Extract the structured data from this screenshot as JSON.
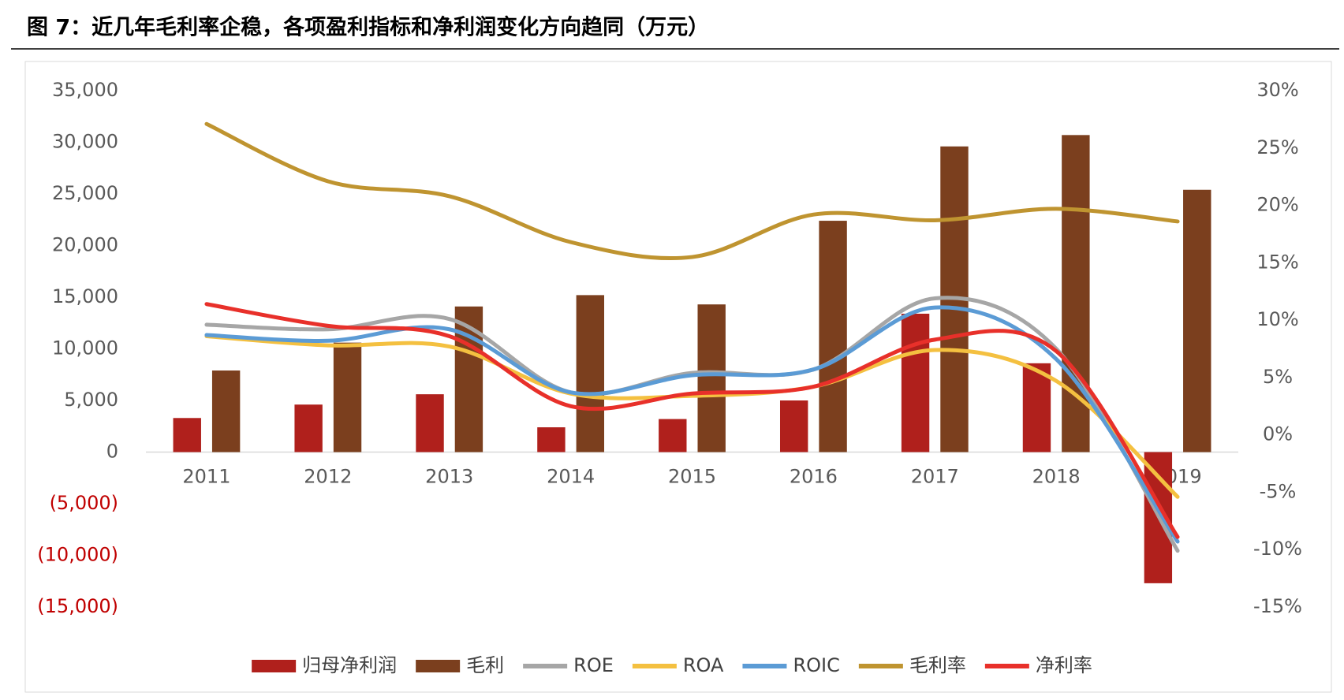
{
  "chart_data": {
    "type": "combo",
    "title": "图 7：近几年毛利率企稳，各项盈利指标和净利润变化方向趋同（万元）",
    "categories": [
      "2011",
      "2012",
      "2013",
      "2014",
      "2015",
      "2016",
      "2017",
      "2018",
      "2019"
    ],
    "series": [
      {
        "name": "归母净利润",
        "type": "bar",
        "color": "#b0201c",
        "values": [
          3300,
          4600,
          5600,
          2400,
          3200,
          5000,
          13400,
          8600,
          -12700
        ]
      },
      {
        "name": "毛利",
        "type": "bar",
        "color": "#7b3f1e",
        "values": [
          7900,
          10600,
          14100,
          15200,
          14300,
          22400,
          29600,
          30700,
          25400
        ]
      },
      {
        "name": "ROE",
        "type": "line",
        "axis": "y2",
        "color": "#a6a6a6",
        "values": [
          9.6,
          9.2,
          10.1,
          3.7,
          5.4,
          5.7,
          11.9,
          7.5,
          -10.1
        ]
      },
      {
        "name": "ROA",
        "type": "line",
        "axis": "y2",
        "color": "#f4c040",
        "values": [
          8.6,
          7.8,
          7.7,
          3.6,
          3.4,
          4.2,
          7.4,
          4.7,
          -5.4
        ]
      },
      {
        "name": "ROIC",
        "type": "line",
        "axis": "y2",
        "color": "#5b9bd5",
        "values": [
          8.7,
          8.2,
          9.2,
          3.7,
          5.2,
          5.7,
          11.1,
          6.6,
          -9.3
        ]
      },
      {
        "name": "毛利率",
        "type": "line",
        "axis": "y2",
        "color": "#bf9430",
        "values": [
          27.1,
          22.1,
          20.8,
          16.8,
          15.5,
          19.2,
          18.7,
          19.7,
          18.6
        ]
      },
      {
        "name": "净利率",
        "type": "line",
        "axis": "y2",
        "color": "#e8302a",
        "values": [
          11.4,
          9.5,
          8.6,
          2.5,
          3.6,
          4.2,
          8.3,
          7.3,
          -8.9
        ]
      }
    ],
    "ylim": [
      -15000,
      35000
    ],
    "yticks": [
      {
        "value": 35000,
        "label": "35,000"
      },
      {
        "value": 30000,
        "label": "30,000"
      },
      {
        "value": 25000,
        "label": "25,000"
      },
      {
        "value": 20000,
        "label": "20,000"
      },
      {
        "value": 15000,
        "label": "15,000"
      },
      {
        "value": 10000,
        "label": "10,000"
      },
      {
        "value": 5000,
        "label": "5,000"
      },
      0,
      {
        "value": -5000,
        "label": "(5,000)"
      },
      {
        "value": -10000,
        "label": "(10,000)"
      },
      {
        "value": -15000,
        "label": "(15,000)"
      }
    ],
    "negative_tick_color": "#c00000",
    "y2lim": [
      -15,
      30
    ],
    "y2ticks": [
      {
        "value": 30,
        "label": "30%"
      },
      {
        "value": 25,
        "label": "25%"
      },
      {
        "value": 20,
        "label": "20%"
      },
      {
        "value": 15,
        "label": "15%"
      },
      {
        "value": 10,
        "label": "10%"
      },
      {
        "value": 5,
        "label": "5%"
      },
      {
        "value": 0,
        "label": "0%"
      },
      {
        "value": -5,
        "label": "-5%"
      },
      {
        "value": -10,
        "label": "-10%"
      },
      {
        "value": -15,
        "label": "-15%"
      }
    ],
    "smooth": true,
    "legend": "bottom"
  }
}
